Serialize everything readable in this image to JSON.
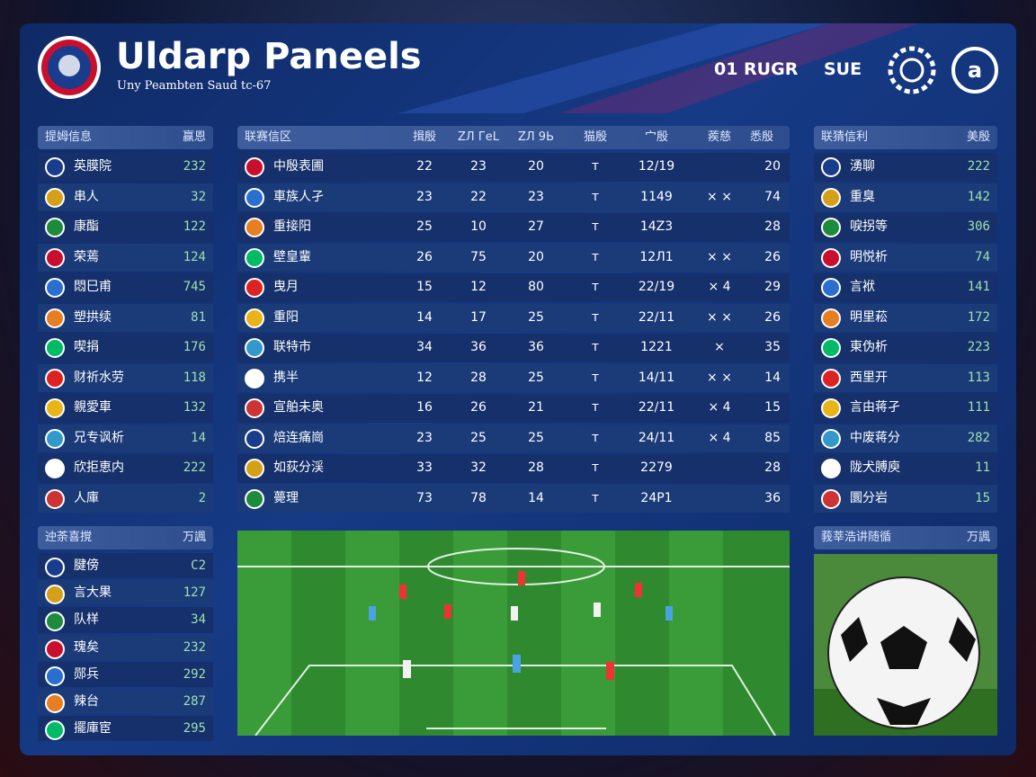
{
  "header": {
    "title": "Uldarp Paneels",
    "subtitle": "Uny Peambten Saud tc-67",
    "score": "01 RUGR",
    "status": "SUE"
  },
  "left_panel": {
    "headers": [
      "提姆信息",
      "赢恩"
    ],
    "rows": [
      [
        "英膜院",
        "232"
      ],
      [
        "串人",
        "32"
      ],
      [
        "康酯",
        "122"
      ],
      [
        "荣蔫",
        "124"
      ],
      [
        "悶巳甫",
        "745"
      ],
      [
        "塑拱续",
        "81"
      ],
      [
        "喫捐",
        "176"
      ],
      [
        "财祈水劳",
        "118"
      ],
      [
        "親愛車",
        "132"
      ],
      [
        "兄专讽析",
        "14"
      ],
      [
        "欣拒恵内",
        "222"
      ],
      [
        "人庫",
        "2"
      ]
    ]
  },
  "league_table": {
    "headers": [
      "联赛信区",
      "揖殷",
      "ZЛ ГеL",
      "ZЛ 9Ь",
      "猫殷",
      "宀殷",
      "蒺慈",
      "悉殷"
    ],
    "rows": [
      [
        "中殷表圃",
        "22",
        "23",
        "20",
        "ᴛ",
        "12/19",
        "",
        "20"
      ],
      [
        "車族人孑",
        "23",
        "22",
        "23",
        "ᴛ",
        "1149",
        "× ×",
        "74"
      ],
      [
        "重接阳",
        "25",
        "10",
        "27",
        "ᴛ",
        "14Z3",
        "",
        "28"
      ],
      [
        "壁皇輩",
        "26",
        "75",
        "20",
        "ᴛ",
        "12Л1",
        "× ×",
        "26"
      ],
      [
        "曳月",
        "15",
        "12",
        "80",
        "ᴛ",
        "22/19",
        "× 4",
        "29"
      ],
      [
        "重阳",
        "14",
        "17",
        "25",
        "ᴛ",
        "22/11",
        "× ×",
        "26"
      ],
      [
        "联特市",
        "34",
        "36",
        "36",
        "ᴛ",
        "1221",
        "×",
        "35"
      ],
      [
        "携半",
        "12",
        "28",
        "25",
        "ᴛ",
        "14/11",
        "× ×",
        "14"
      ],
      [
        "宣舶未奥",
        "16",
        "26",
        "21",
        "ᴛ",
        "22/11",
        "× 4",
        "15"
      ],
      [
        "焙连痛崗",
        "23",
        "25",
        "25",
        "ᴛ",
        "24/11",
        "× 4",
        "85"
      ],
      [
        "如荻分渓",
        "33",
        "32",
        "28",
        "ᴛ",
        "2279",
        "",
        "28"
      ],
      [
        "薨理",
        "73",
        "78",
        "14",
        "ᴛ",
        "24Р1",
        "",
        "36"
      ]
    ]
  },
  "right_panel": {
    "headers": [
      "联猜信利",
      "美殷"
    ],
    "rows": [
      [
        "湧聊",
        "222"
      ],
      [
        "重臭",
        "142"
      ],
      [
        "唳拐等",
        "306"
      ],
      [
        "明悦析",
        "74"
      ],
      [
        "言袱",
        "141"
      ],
      [
        "明里菘",
        "172"
      ],
      [
        "東伪析",
        "223"
      ],
      [
        "西里开",
        "113"
      ],
      [
        "言由蒋孑",
        "111"
      ],
      [
        "中废蒋分",
        "282"
      ],
      [
        "陇犬膊庾",
        "11"
      ],
      [
        "圜分岩",
        "15"
      ]
    ]
  },
  "bottom_left_panel": {
    "headers": [
      "迚荼喜撹",
      "万諷"
    ],
    "rows": [
      [
        "腱傍",
        "C2"
      ],
      [
        "言大果",
        "127"
      ],
      [
        "队样",
        "34"
      ],
      [
        "瑰矣",
        "232"
      ],
      [
        "郧兵",
        "292"
      ],
      [
        "辣台",
        "287"
      ],
      [
        "擺庫宦",
        "295"
      ]
    ]
  },
  "media_panel": {
    "headers": [
      "莪莘浩讲随循",
      "万諷"
    ]
  }
}
